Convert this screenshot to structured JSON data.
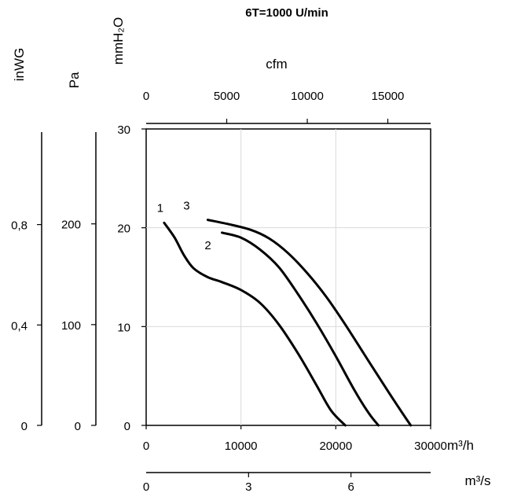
{
  "chart_data": {
    "type": "line",
    "title": "6T=1000 U/min",
    "x_axis_primary": {
      "unit": "m³/h",
      "range": [
        0,
        30000
      ],
      "ticks": [
        "0",
        "10000",
        "20000",
        "30000"
      ]
    },
    "x_axis_secondary": {
      "unit": "m³/s",
      "range": [
        0,
        8.333
      ],
      "ticks": [
        "0",
        "3",
        "6"
      ],
      "tick_values": [
        0,
        3,
        6
      ]
    },
    "x_axis_top": {
      "unit": "cfm",
      "range": [
        0,
        17657
      ],
      "ticks": [
        "0",
        "5000",
        "10000",
        "15000"
      ],
      "tick_values": [
        0,
        5000,
        10000,
        15000
      ]
    },
    "y_axis_primary": {
      "unit": "mmH₂O",
      "range": [
        0,
        30
      ],
      "ticks": [
        "0",
        "10",
        "20",
        "30"
      ]
    },
    "y_axis_pa": {
      "unit": "Pa",
      "range": [
        0,
        294.2
      ],
      "ticks": [
        "0",
        "100",
        "200"
      ],
      "tick_values": [
        0,
        100,
        200
      ]
    },
    "y_axis_inwg": {
      "unit": "inWG",
      "range": [
        0,
        1.181
      ],
      "ticks": [
        "0",
        "0,4",
        "0,8"
      ],
      "tick_values": [
        0,
        0.4,
        0.8
      ]
    },
    "grid": true,
    "series": [
      {
        "name": "1",
        "x": [
          1900,
          3000,
          4000,
          5000,
          6500,
          8000,
          10000,
          12000,
          14000,
          16000,
          18000,
          19500,
          21000
        ],
        "y": [
          20.5,
          19.0,
          17.2,
          15.9,
          15.0,
          14.5,
          13.7,
          12.4,
          10.2,
          7.3,
          4.0,
          1.5,
          0
        ]
      },
      {
        "name": "2",
        "x": [
          8000,
          10000,
          12000,
          14000,
          16000,
          18000,
          20000,
          22000,
          23500,
          24500
        ],
        "y": [
          19.5,
          19.0,
          17.8,
          16.0,
          13.3,
          10.3,
          7.0,
          3.5,
          1.2,
          0
        ]
      },
      {
        "name": "3",
        "x": [
          6500,
          8500,
          11000,
          13000,
          15000,
          17000,
          19000,
          21000,
          23000,
          25000,
          26500,
          27900
        ],
        "y": [
          20.8,
          20.4,
          19.8,
          18.9,
          17.4,
          15.4,
          13.0,
          10.2,
          7.2,
          4.2,
          2.0,
          0
        ]
      }
    ]
  }
}
